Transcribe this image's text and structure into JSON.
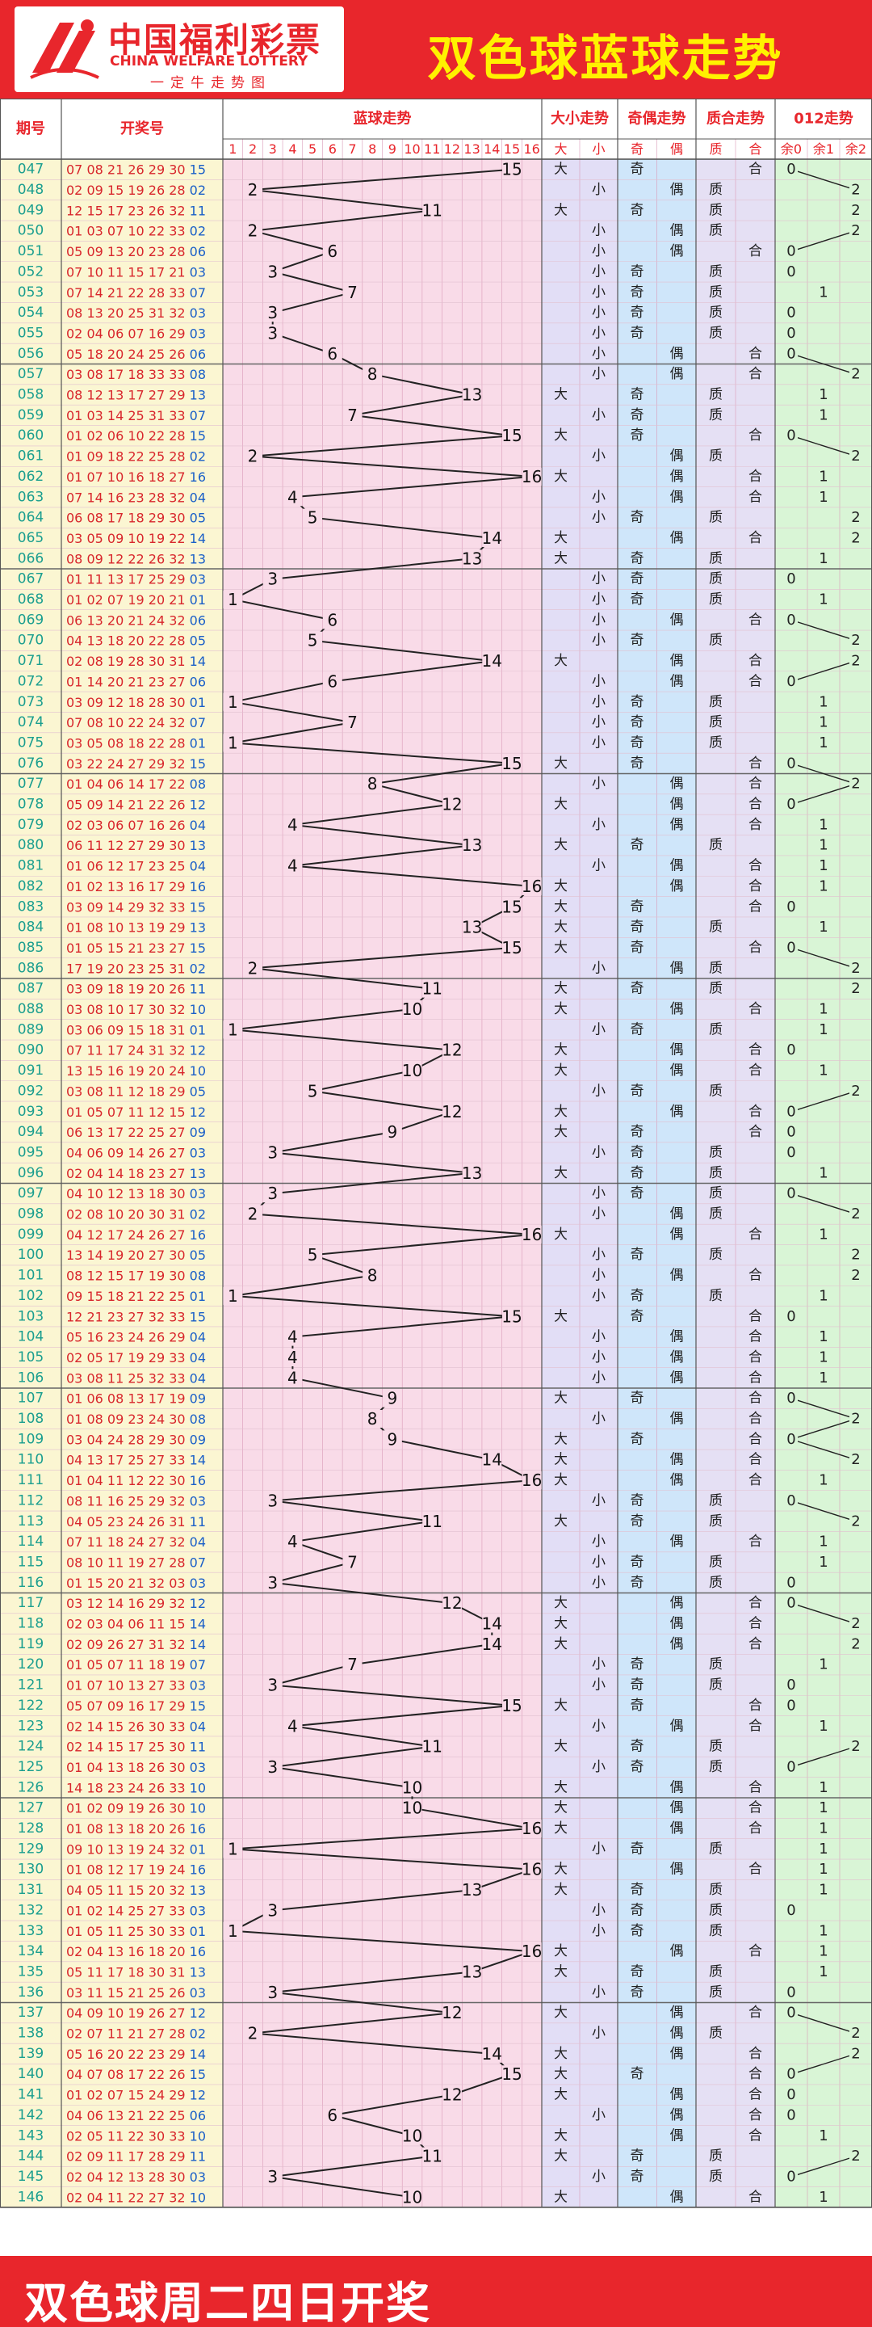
{
  "header": {
    "logo_cn": "中国福利彩票",
    "logo_en": "CHINA WELFARE LOTTERY",
    "logo_sub": "一定牛走势图",
    "title": "双色球蓝球走势"
  },
  "footer": {
    "text": "双色球周二四日开奖"
  },
  "columns": {
    "issue": "期号",
    "numbers": "开奖号",
    "blue_trend": "蓝球走势",
    "big_small": "大小走势",
    "odd_even": "奇偶走势",
    "prime_composite": "质合走势",
    "mod3": "012走势",
    "big": "大",
    "small": "小",
    "odd": "奇",
    "even": "偶",
    "prime": "质",
    "composite": "合",
    "r0": "余0",
    "r1": "余1",
    "r2": "余2",
    "blue_nums": [
      "1",
      "2",
      "3",
      "4",
      "5",
      "6",
      "7",
      "8",
      "9",
      "10",
      "11",
      "12",
      "13",
      "14",
      "15",
      "16"
    ]
  },
  "colors": {
    "brand_red": "#e8262c",
    "title_yellow": "#fff200",
    "issue_bg": "#fbf6d2",
    "blue_bg": "#f9dbe8",
    "big_small_bg": "#e2def6",
    "odd_even_bg": "#cfe6fa",
    "prime_bg": "#e5e0f4",
    "mod3_bg": "#d9f5d6",
    "issue_text": "#1a9e8f",
    "line_color": "#222222"
  },
  "chart_data": {
    "type": "line",
    "title": "双色球蓝球走势",
    "xlabel": "期号",
    "ylabel": "蓝球",
    "ylim": [
      1,
      16
    ],
    "rows": [
      {
        "issue": "047",
        "reds": "07 08 21 26 29 30",
        "blue": 15
      },
      {
        "issue": "048",
        "reds": "02 09 15 19 26 28",
        "blue": 2
      },
      {
        "issue": "049",
        "reds": "12 15 17 23 26 32",
        "blue": 11
      },
      {
        "issue": "050",
        "reds": "01 03 07 10 22 33",
        "blue": 2
      },
      {
        "issue": "051",
        "reds": "05 09 13 20 23 28",
        "blue": 6
      },
      {
        "issue": "052",
        "reds": "07 10 11 15 17 21",
        "blue": 3
      },
      {
        "issue": "053",
        "reds": "07 14 21 22 28 33",
        "blue": 7
      },
      {
        "issue": "054",
        "reds": "08 13 20 25 31 32",
        "blue": 3
      },
      {
        "issue": "055",
        "reds": "02 04 06 07 16 29",
        "blue": 3
      },
      {
        "issue": "056",
        "reds": "05 18 20 24 25 26",
        "blue": 6
      },
      {
        "issue": "057",
        "reds": "03 08 17 18 33 33",
        "blue": 8
      },
      {
        "issue": "058",
        "reds": "08 12 13 17 27 29",
        "blue": 13
      },
      {
        "issue": "059",
        "reds": "01 03 14 25 31 33",
        "blue": 7
      },
      {
        "issue": "060",
        "reds": "01 02 06 10 22 28",
        "blue": 15
      },
      {
        "issue": "061",
        "reds": "01 09 18 22 25 28",
        "blue": 2
      },
      {
        "issue": "062",
        "reds": "01 07 10 16 18 27",
        "blue": 16
      },
      {
        "issue": "063",
        "reds": "07 14 16 23 28 32",
        "blue": 4
      },
      {
        "issue": "064",
        "reds": "06 08 17 18 29 30",
        "blue": 5
      },
      {
        "issue": "065",
        "reds": "03 05 09 10 19 22",
        "blue": 14
      },
      {
        "issue": "066",
        "reds": "08 09 12 22 26 32",
        "blue": 13
      },
      {
        "issue": "067",
        "reds": "01 11 13 17 25 29",
        "blue": 3
      },
      {
        "issue": "068",
        "reds": "01 02 07 19 20 21",
        "blue": 1
      },
      {
        "issue": "069",
        "reds": "06 13 20 21 24 32",
        "blue": 6
      },
      {
        "issue": "070",
        "reds": "04 13 18 20 22 28",
        "blue": 5
      },
      {
        "issue": "071",
        "reds": "02 08 19 28 30 31",
        "blue": 14
      },
      {
        "issue": "072",
        "reds": "01 14 20 21 23 27",
        "blue": 6
      },
      {
        "issue": "073",
        "reds": "03 09 12 18 28 30",
        "blue": 1
      },
      {
        "issue": "074",
        "reds": "07 08 10 22 24 32",
        "blue": 7
      },
      {
        "issue": "075",
        "reds": "03 05 08 18 22 28",
        "blue": 1
      },
      {
        "issue": "076",
        "reds": "03 22 24 27 29 32",
        "blue": 15
      },
      {
        "issue": "077",
        "reds": "01 04 06 14 17 22",
        "blue": 8
      },
      {
        "issue": "078",
        "reds": "05 09 14 21 22 26",
        "blue": 12
      },
      {
        "issue": "079",
        "reds": "02 03 06 07 16 26",
        "blue": 4
      },
      {
        "issue": "080",
        "reds": "06 11 12 27 29 30",
        "blue": 13
      },
      {
        "issue": "081",
        "reds": "01 06 12 17 23 25",
        "blue": 4
      },
      {
        "issue": "082",
        "reds": "01 02 13 16 17 29",
        "blue": 16
      },
      {
        "issue": "083",
        "reds": "03 09 14 29 32 33",
        "blue": 15
      },
      {
        "issue": "084",
        "reds": "01 08 10 13 19 29",
        "blue": 13
      },
      {
        "issue": "085",
        "reds": "01 05 15 21 23 27",
        "blue": 15
      },
      {
        "issue": "086",
        "reds": "17 19 20 23 25 31",
        "blue": 2
      },
      {
        "issue": "087",
        "reds": "03 09 18 19 20 26",
        "blue": 11
      },
      {
        "issue": "088",
        "reds": "03 08 10 17 30 32",
        "blue": 10
      },
      {
        "issue": "089",
        "reds": "03 06 09 15 18 31",
        "blue": 1
      },
      {
        "issue": "090",
        "reds": "07 11 17 24 31 32",
        "blue": 12
      },
      {
        "issue": "091",
        "reds": "13 15 16 19 20 24",
        "blue": 10
      },
      {
        "issue": "092",
        "reds": "03 08 11 12 18 29",
        "blue": 5
      },
      {
        "issue": "093",
        "reds": "01 05 07 11 12 15",
        "blue": 12
      },
      {
        "issue": "094",
        "reds": "06 13 17 22 25 27",
        "blue": 9
      },
      {
        "issue": "095",
        "reds": "04 06 09 14 26 27",
        "blue": 3
      },
      {
        "issue": "096",
        "reds": "02 04 14 18 23 27",
        "blue": 13
      },
      {
        "issue": "097",
        "reds": "04 10 12 13 18 30",
        "blue": 3
      },
      {
        "issue": "098",
        "reds": "02 08 10 20 30 31",
        "blue": 2
      },
      {
        "issue": "099",
        "reds": "04 12 17 24 26 27",
        "blue": 16
      },
      {
        "issue": "100",
        "reds": "13 14 19 20 27 30",
        "blue": 5
      },
      {
        "issue": "101",
        "reds": "08 12 15 17 19 30",
        "blue": 8
      },
      {
        "issue": "102",
        "reds": "09 15 18 21 22 25",
        "blue": 1
      },
      {
        "issue": "103",
        "reds": "12 21 23 27 32 33",
        "blue": 15
      },
      {
        "issue": "104",
        "reds": "05 16 23 24 26 29",
        "blue": 4
      },
      {
        "issue": "105",
        "reds": "02 05 17 19 29 33",
        "blue": 4
      },
      {
        "issue": "106",
        "reds": "03 08 11 25 32 33",
        "blue": 4
      },
      {
        "issue": "107",
        "reds": "01 06 08 13 17 19",
        "blue": 9
      },
      {
        "issue": "108",
        "reds": "01 08 09 23 24 30",
        "blue": 8
      },
      {
        "issue": "109",
        "reds": "03 04 24 28 29 30",
        "blue": 9
      },
      {
        "issue": "110",
        "reds": "04 13 17 25 27 33",
        "blue": 14
      },
      {
        "issue": "111",
        "reds": "01 04 11 12 22 30",
        "blue": 16
      },
      {
        "issue": "112",
        "reds": "08 11 16 25 29 32",
        "blue": 3
      },
      {
        "issue": "113",
        "reds": "04 05 23 24 26 31",
        "blue": 11
      },
      {
        "issue": "114",
        "reds": "07 11 18 24 27 32",
        "blue": 4
      },
      {
        "issue": "115",
        "reds": "08 10 11 19 27 28",
        "blue": 7
      },
      {
        "issue": "116",
        "reds": "01 15 20 21 32 03",
        "blue": 3
      },
      {
        "issue": "117",
        "reds": "03 12 14 16 29 32",
        "blue": 12
      },
      {
        "issue": "118",
        "reds": "02 03 04 06 11 15",
        "blue": 14
      },
      {
        "issue": "119",
        "reds": "02 09 26 27 31 32",
        "blue": 14
      },
      {
        "issue": "120",
        "reds": "01 05 07 11 18 19",
        "blue": 7
      },
      {
        "issue": "121",
        "reds": "01 07 10 13 27 33",
        "blue": 3
      },
      {
        "issue": "122",
        "reds": "05 07 09 16 17 29",
        "blue": 15
      },
      {
        "issue": "123",
        "reds": "02 14 15 26 30 33",
        "blue": 4
      },
      {
        "issue": "124",
        "reds": "02 14 15 17 25 30",
        "blue": 11
      },
      {
        "issue": "125",
        "reds": "01 04 13 18 26 30",
        "blue": 3
      },
      {
        "issue": "126",
        "reds": "14 18 23 24 26 33",
        "blue": 10
      },
      {
        "issue": "127",
        "reds": "01 02 09 19 26 30",
        "blue": 10
      },
      {
        "issue": "128",
        "reds": "01 08 13 18 20 26",
        "blue": 16
      },
      {
        "issue": "129",
        "reds": "09 10 13 19 24 32",
        "blue": 1
      },
      {
        "issue": "130",
        "reds": "01 08 12 17 19 24",
        "blue": 16
      },
      {
        "issue": "131",
        "reds": "04 05 11 15 20 32",
        "blue": 13
      },
      {
        "issue": "132",
        "reds": "01 02 14 25 27 33",
        "blue": 3
      },
      {
        "issue": "133",
        "reds": "01 05 11 25 30 33",
        "blue": 1
      },
      {
        "issue": "134",
        "reds": "02 04 13 16 18 20",
        "blue": 16
      },
      {
        "issue": "135",
        "reds": "05 11 17 18 30 31",
        "blue": 13
      },
      {
        "issue": "136",
        "reds": "03 11 15 21 25 26",
        "blue": 3
      },
      {
        "issue": "137",
        "reds": "04 09 10 19 26 27",
        "blue": 12
      },
      {
        "issue": "138",
        "reds": "02 07 11 21 27 28",
        "blue": 2
      },
      {
        "issue": "139",
        "reds": "05 16 20 22 23 29",
        "blue": 14
      },
      {
        "issue": "140",
        "reds": "04 07 08 17 22 26",
        "blue": 15
      },
      {
        "issue": "141",
        "reds": "01 02 07 15 24 29",
        "blue": 12
      },
      {
        "issue": "142",
        "reds": "04 06 13 21 22 25",
        "blue": 6
      },
      {
        "issue": "143",
        "reds": "02 05 11 22 30 33",
        "blue": 10
      },
      {
        "issue": "144",
        "reds": "02 09 11 17 28 29",
        "blue": 11
      },
      {
        "issue": "145",
        "reds": "02 04 12 13 28 30",
        "blue": 3
      },
      {
        "issue": "146",
        "reds": "02 04 11 22 27 32",
        "blue": 10
      }
    ]
  }
}
